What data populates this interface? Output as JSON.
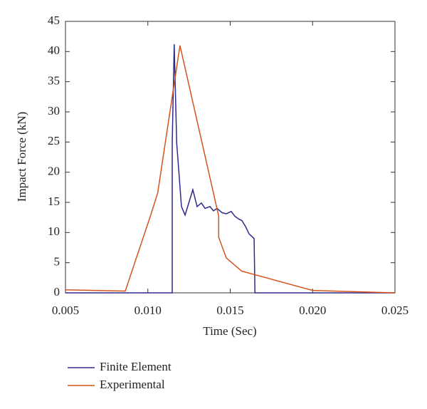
{
  "chart_data": {
    "type": "line",
    "x_label": "Time (Sec)",
    "y_label": "Impact Force (kN)",
    "xlim": [
      0.005,
      0.025
    ],
    "xticks": [
      0.005,
      {
        "value": 0.01,
        "label": "0.010"
      },
      0.015,
      {
        "value": 0.02,
        "label": "0.020"
      },
      0.025
    ],
    "ylim": [
      0,
      45
    ],
    "yticks": [
      0,
      5,
      10,
      15,
      20,
      25,
      30,
      35,
      40,
      45
    ],
    "legend": "bottom-left",
    "series": [
      {
        "name": "Finite Element",
        "color": "#2e2a8c",
        "x": [
          0.005,
          0.01148,
          0.01148,
          0.0116,
          0.01175,
          0.01204,
          0.01226,
          0.01273,
          0.01299,
          0.01325,
          0.01347,
          0.01377,
          0.01398,
          0.0142,
          0.0145,
          0.01476,
          0.01506,
          0.01528,
          0.01554,
          0.0157,
          0.01593,
          0.01614,
          0.01645,
          0.0165,
          0.025
        ],
        "values": [
          0,
          0,
          24.9,
          41.2,
          24.9,
          14.3,
          12.9,
          17.1,
          14.3,
          14.9,
          14,
          14.3,
          13.6,
          14,
          13.3,
          13.1,
          13.5,
          12.7,
          12.2,
          12,
          11,
          9.8,
          9,
          0,
          0
        ]
      },
      {
        "name": "Experimental",
        "color": "#d4541c",
        "x": [
          0.005,
          0.00863,
          0.0102,
          0.0106,
          0.01195,
          0.0143,
          0.0143,
          0.01476,
          0.0157,
          0.02,
          0.025
        ],
        "values": [
          0.5,
          0.3,
          13.1,
          16.6,
          41,
          12.7,
          9.2,
          5.8,
          3.6,
          0.4,
          0
        ]
      }
    ]
  }
}
